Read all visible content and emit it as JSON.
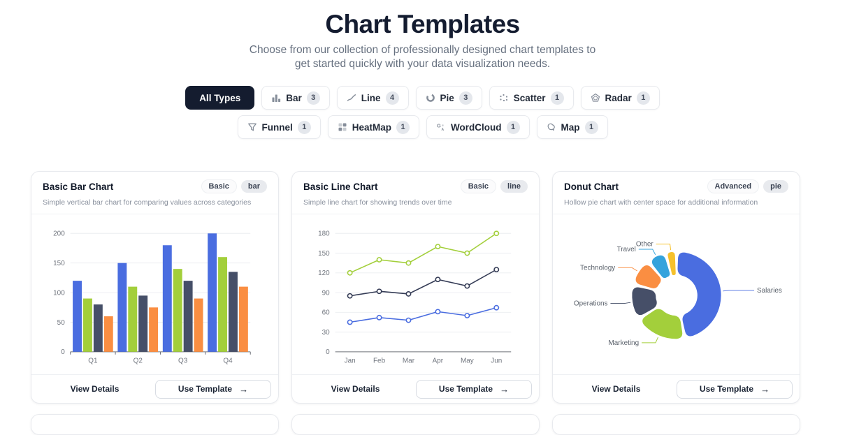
{
  "page": {
    "title": "Chart Templates",
    "subtitle": "Choose from our collection of professionally designed chart templates to get started quickly with your data visualization needs."
  },
  "filters": {
    "rows": [
      [
        {
          "id": "all",
          "label": "All Types",
          "active": true
        },
        {
          "id": "bar",
          "label": "Bar",
          "count": "3",
          "icon": "bar-chart-icon"
        },
        {
          "id": "line",
          "label": "Line",
          "count": "4",
          "icon": "line-chart-icon"
        },
        {
          "id": "pie",
          "label": "Pie",
          "count": "3",
          "icon": "pie-chart-icon"
        },
        {
          "id": "scatter",
          "label": "Scatter",
          "count": "1",
          "icon": "scatter-icon"
        },
        {
          "id": "radar",
          "label": "Radar",
          "count": "1",
          "icon": "radar-icon"
        }
      ],
      [
        {
          "id": "funnel",
          "label": "Funnel",
          "count": "1",
          "icon": "funnel-icon"
        },
        {
          "id": "heatmap",
          "label": "HeatMap",
          "count": "1",
          "icon": "heatmap-icon"
        },
        {
          "id": "wordcloud",
          "label": "WordCloud",
          "count": "1",
          "icon": "wordcloud-icon"
        },
        {
          "id": "map",
          "label": "Map",
          "count": "1",
          "icon": "map-icon"
        }
      ]
    ]
  },
  "cards": [
    {
      "title": "Basic Bar Chart",
      "level": "Basic",
      "type_tag": "bar",
      "description": "Simple vertical bar chart for comparing values across categories",
      "view_details": "View Details",
      "use_template": "Use Template",
      "arrow": "→"
    },
    {
      "title": "Basic Line Chart",
      "level": "Basic",
      "type_tag": "line",
      "description": "Simple line chart for showing trends over time",
      "view_details": "View Details",
      "use_template": "Use Template",
      "arrow": "→"
    },
    {
      "title": "Donut Chart",
      "level": "Advanced",
      "type_tag": "pie",
      "description": "Hollow pie chart with center space for additional information",
      "view_details": "View Details",
      "use_template": "Use Template",
      "arrow": "→"
    }
  ],
  "chart_data": [
    {
      "type": "bar",
      "title": "Basic Bar Chart",
      "categories": [
        "Q1",
        "Q2",
        "Q3",
        "Q4"
      ],
      "series": [
        {
          "color": "#4a6de0",
          "values": [
            120,
            150,
            180,
            200
          ]
        },
        {
          "color": "#a3cf3b",
          "values": [
            90,
            110,
            140,
            160
          ]
        },
        {
          "color": "#464f68",
          "values": [
            80,
            95,
            120,
            135
          ]
        },
        {
          "color": "#fa8e42",
          "values": [
            60,
            75,
            90,
            110
          ]
        }
      ],
      "ylim": [
        0,
        200
      ],
      "yticks": [
        0,
        50,
        100,
        150,
        200
      ],
      "grid": true,
      "legend": "none"
    },
    {
      "type": "line",
      "title": "Basic Line Chart",
      "x": [
        "Jan",
        "Feb",
        "Mar",
        "Apr",
        "May",
        "Jun"
      ],
      "series": [
        {
          "color": "#a3cf3b",
          "values": [
            120,
            140,
            135,
            160,
            150,
            180
          ]
        },
        {
          "color": "#343b55",
          "values": [
            85,
            92,
            88,
            110,
            100,
            125
          ]
        },
        {
          "color": "#4a6de0",
          "values": [
            45,
            52,
            48,
            61,
            55,
            67
          ]
        }
      ],
      "ylim": [
        0,
        180
      ],
      "yticks": [
        0,
        30,
        60,
        90,
        120,
        150,
        180
      ],
      "grid": true,
      "legend": "none"
    },
    {
      "type": "pie",
      "title": "Donut Chart",
      "donut": true,
      "labels": [
        "Salaries",
        "Marketing",
        "Operations",
        "Technology",
        "Travel",
        "Other"
      ],
      "values": [
        47,
        19,
        13,
        10,
        7,
        4
      ],
      "colors": [
        "#4a6de0",
        "#a3cf3b",
        "#464f68",
        "#fa8e42",
        "#35a3dc",
        "#f6c12c"
      ],
      "label_color": "#5a616b"
    }
  ],
  "colors": {
    "accent_dark": "#141c2f",
    "card_border": "#e8eaee",
    "grid_line": "#ebedf0",
    "axis_line": "#6e7079",
    "tick_text": "#70757e"
  }
}
